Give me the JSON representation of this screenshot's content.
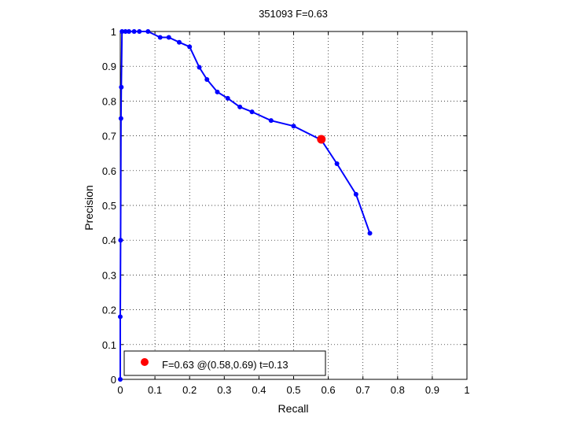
{
  "chart_data": {
    "type": "line",
    "title": "351093 F=0.63",
    "xlabel": "Recall",
    "ylabel": "Precision",
    "xlim": [
      0,
      1
    ],
    "ylim": [
      0,
      1
    ],
    "xticks": [
      "0",
      "0.1",
      "0.2",
      "0.3",
      "0.4",
      "0.5",
      "0.6",
      "0.7",
      "0.8",
      "0.9",
      "1"
    ],
    "yticks": [
      "0",
      "0.1",
      "0.2",
      "0.3",
      "0.4",
      "0.5",
      "0.6",
      "0.7",
      "0.8",
      "0.9",
      "1"
    ],
    "grid": true,
    "legend_position": "bottom-left",
    "series": [
      {
        "color": "#0000ff",
        "points": [
          [
            0.0,
            0.0
          ],
          [
            0.0,
            0.18
          ],
          [
            0.001,
            0.4
          ],
          [
            0.002,
            0.75
          ],
          [
            0.003,
            0.84
          ],
          [
            0.005,
            1.0
          ],
          [
            0.015,
            1.0
          ],
          [
            0.025,
            1.0
          ],
          [
            0.04,
            1.0
          ],
          [
            0.055,
            1.0
          ],
          [
            0.08,
            1.0
          ],
          [
            0.115,
            0.983
          ],
          [
            0.14,
            0.983
          ],
          [
            0.17,
            0.969
          ],
          [
            0.2,
            0.956
          ],
          [
            0.228,
            0.897
          ],
          [
            0.25,
            0.862
          ],
          [
            0.28,
            0.826
          ],
          [
            0.31,
            0.808
          ],
          [
            0.345,
            0.783
          ],
          [
            0.38,
            0.769
          ],
          [
            0.435,
            0.744
          ],
          [
            0.5,
            0.728
          ],
          [
            0.58,
            0.688
          ],
          [
            0.625,
            0.62
          ],
          [
            0.68,
            0.532
          ],
          [
            0.72,
            0.42
          ]
        ]
      }
    ],
    "best_point": {
      "recall": 0.58,
      "precision": 0.69,
      "color": "#ff0000"
    },
    "legend": {
      "label": "F=0.63 @(0.58,0.69) t=0.13"
    }
  }
}
